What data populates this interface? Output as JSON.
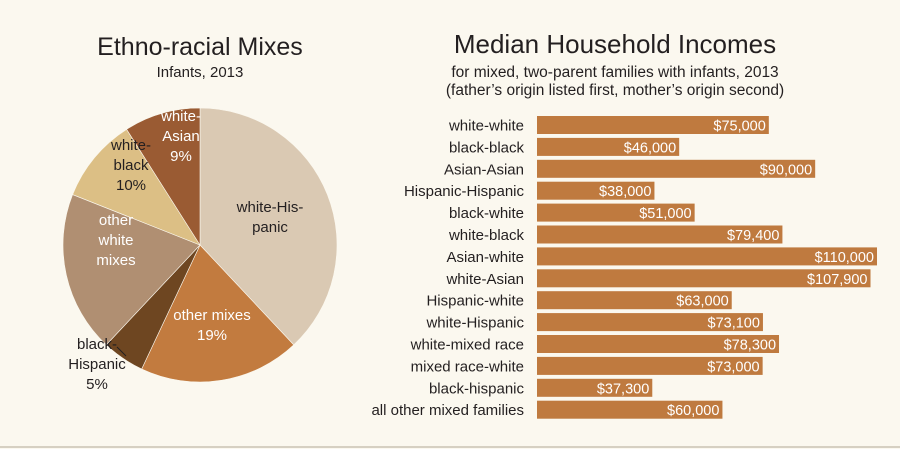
{
  "chart_data": [
    {
      "type": "pie",
      "title": "Ethno-racial Mixes",
      "subtitle": "Infants, 2013",
      "slices": [
        {
          "label": "white-His-panic",
          "lines": [
            "white-His-",
            "panic"
          ],
          "percent": null,
          "value": 38,
          "color": "#dac9b3"
        },
        {
          "label": "other mixes",
          "lines": [
            "other mixes",
            "19%"
          ],
          "percent": "19%",
          "value": 19,
          "color": "#c27b3f"
        },
        {
          "label": "black-Hispanic",
          "lines": [
            "black-",
            "Hispanic",
            "5%"
          ],
          "percent": "5%",
          "value": 5,
          "color": "#6e4621"
        },
        {
          "label": "other white mixes",
          "lines": [
            "other",
            "white",
            "mixes"
          ],
          "percent": null,
          "value": 19,
          "color": "#b08f72"
        },
        {
          "label": "white-black",
          "lines": [
            "white-",
            "black",
            "10%"
          ],
          "percent": "10%",
          "value": 10,
          "color": "#dcbf85"
        },
        {
          "label": "white-Asian",
          "lines": [
            "white-",
            "Asian",
            "9%"
          ],
          "percent": "9%",
          "value": 9,
          "color": "#9a5b33"
        }
      ]
    },
    {
      "type": "bar",
      "orientation": "horizontal",
      "title": "Median Household Incomes",
      "subtitle_lines": [
        "for mixed, two-parent families with infants, 2013",
        "(father’s origin listed first, mother’s origin second)"
      ],
      "bar_color": "#bf7a3f",
      "xlim": [
        0,
        110000
      ],
      "categories": [
        "white-white",
        "black-black",
        "Asian-Asian",
        "Hispanic-Hispanic",
        "black-white",
        "white-black",
        "Asian-white",
        "white-Asian",
        "Hispanic-white",
        "white-Hispanic",
        "white-mixed race",
        "mixed race-white",
        "black-hispanic",
        "all other mixed families"
      ],
      "values": [
        75000,
        46000,
        90000,
        38000,
        51000,
        79400,
        110000,
        107900,
        63000,
        73100,
        78300,
        73000,
        37300,
        60000
      ],
      "value_labels": [
        "$75,000",
        "$46,000",
        "$90,000",
        "$38,000",
        "$51,000",
        "$79,400",
        "$110,000",
        "$107,900",
        "$63,000",
        "$73,100",
        "$78,300",
        "$73,000",
        "$37,300",
        "$60,000"
      ]
    }
  ]
}
